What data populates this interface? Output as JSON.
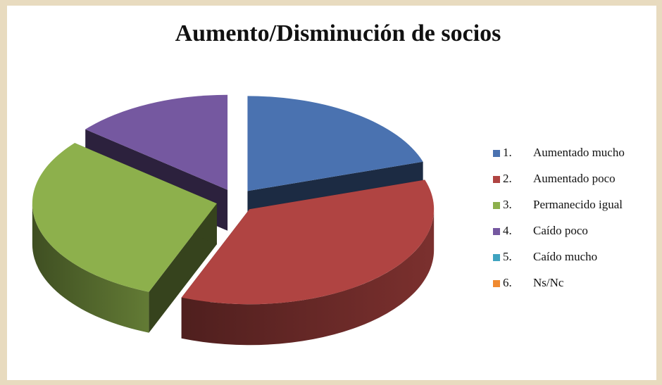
{
  "chart_data": {
    "type": "pie3d",
    "title": "Aumento/Disminución de socios",
    "category_numbers": [
      "1.",
      "2.",
      "3.",
      "4.",
      "5.",
      "6."
    ],
    "categories": [
      "Aumentado mucho",
      "Aumentado poco",
      "Permanecido igual",
      "Caído poco",
      "Caído mucho",
      "Ns/Nc"
    ],
    "values": [
      20,
      36,
      30,
      14,
      0,
      0
    ],
    "colors": [
      "#4a72b0",
      "#b04442",
      "#8db04c",
      "#7558a0",
      "#3fa3c0",
      "#f08a30"
    ],
    "legend": "right"
  }
}
